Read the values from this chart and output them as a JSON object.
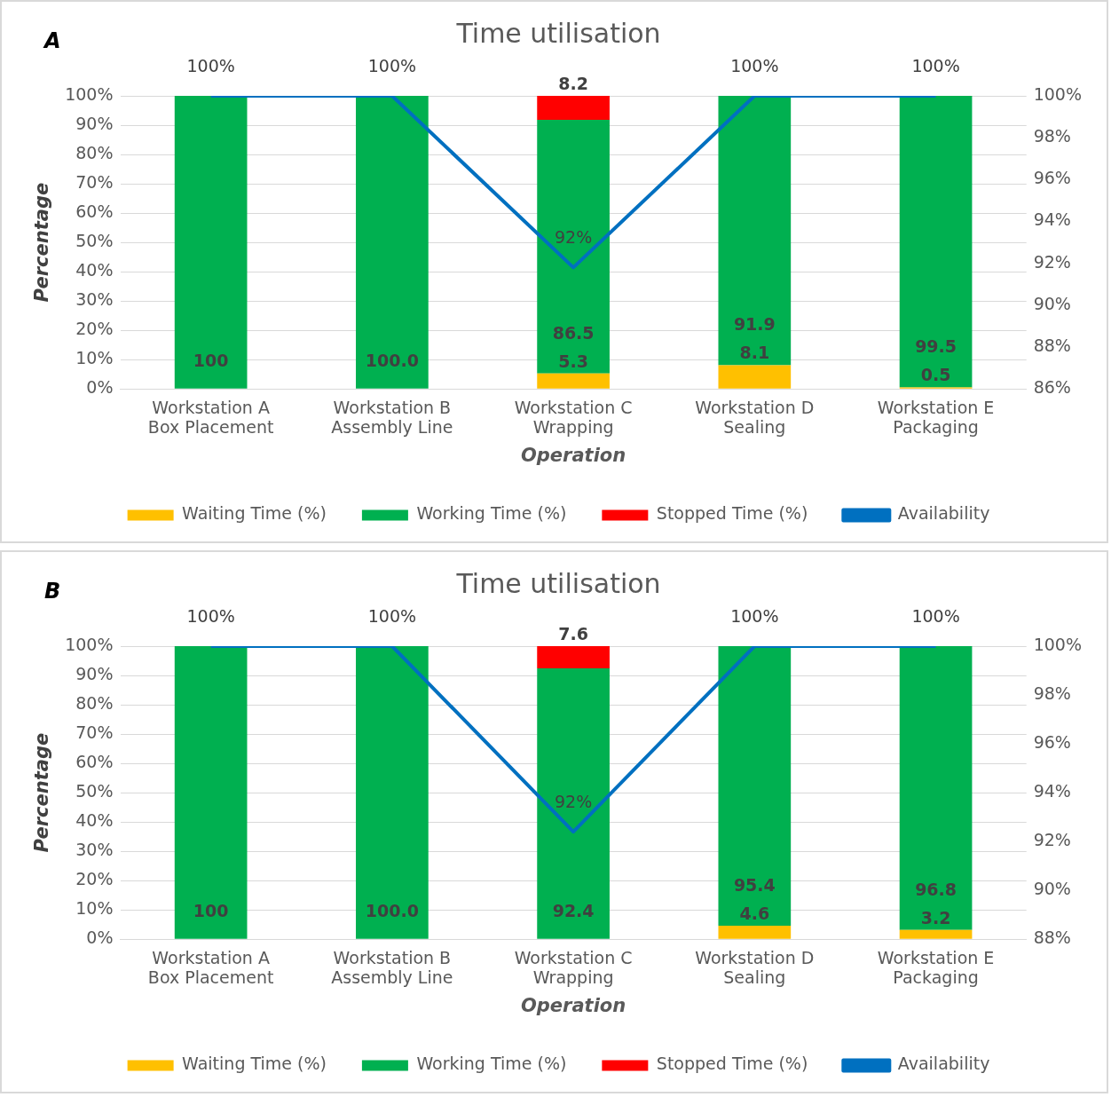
{
  "chart_data": [
    {
      "type": "bar",
      "title": "Time utilisation",
      "xlabel": "Operation",
      "ylabel": "Percentage",
      "annotations": [
        "A"
      ],
      "stacked": true,
      "legend": "bottom",
      "grid": "y",
      "marker": "none",
      "categories": [
        "Workstation A\nBox Placement",
        "Workstation B\nAssembly Line",
        "Workstation C\nWrapping",
        "Workstation D\nSealing",
        "Workstation E\nPackaging"
      ],
      "ylim": [
        0,
        100
      ],
      "yticks": [
        {
          "value": 0,
          "label": "0%"
        },
        {
          "value": 10,
          "label": "10%"
        },
        {
          "value": 20,
          "label": "20%"
        },
        {
          "value": 30,
          "label": "30%"
        },
        {
          "value": 40,
          "label": "40%"
        },
        {
          "value": 50,
          "label": "50%"
        },
        {
          "value": 60,
          "label": "60%"
        },
        {
          "value": 70,
          "label": "70%"
        },
        {
          "value": 80,
          "label": "80%"
        },
        {
          "value": 90,
          "label": "90%"
        },
        {
          "value": 100,
          "label": "100%"
        }
      ],
      "y2lim": [
        86,
        100
      ],
      "y2ticks": [
        {
          "value": 86,
          "label": "86%"
        },
        {
          "value": 88,
          "label": "88%"
        },
        {
          "value": 90,
          "label": "90%"
        },
        {
          "value": 92,
          "label": "92%"
        },
        {
          "value": 94,
          "label": "94%"
        },
        {
          "value": 96,
          "label": "96%"
        },
        {
          "value": 98,
          "label": "98%"
        },
        {
          "value": 100,
          "label": "100%"
        }
      ],
      "series": [
        {
          "name": "Waiting Time (%)",
          "color": "#ffc000",
          "values": [
            0,
            0,
            5.3,
            8.1,
            0.5
          ],
          "value_labels": [
            null,
            null,
            "5.3",
            "8.1",
            "0.5"
          ]
        },
        {
          "name": "Working Time (%)",
          "color": "#00b050",
          "values": [
            100,
            100,
            86.5,
            91.9,
            99.5
          ],
          "value_labels": [
            "100",
            "100.0",
            "86.5",
            "91.9",
            "99.5"
          ]
        },
        {
          "name": "Stopped Time (%)",
          "color": "#ff0000",
          "values": [
            0,
            0,
            8.2,
            0,
            0
          ],
          "value_labels": [
            null,
            null,
            "8.2",
            null,
            null
          ]
        },
        {
          "name": "Availability",
          "type": "line",
          "axis": "y2",
          "color": "#0070c0",
          "values": [
            100,
            100,
            91.8,
            100,
            100
          ],
          "value_labels": [
            "100%",
            "100%",
            "92%",
            "100%",
            "100%"
          ]
        }
      ]
    },
    {
      "type": "bar",
      "title": "Time utilisation",
      "xlabel": "Operation",
      "ylabel": "Percentage",
      "annotations": [
        "B"
      ],
      "stacked": true,
      "legend": "bottom",
      "grid": "y",
      "marker": "none",
      "categories": [
        "Workstation A\nBox Placement",
        "Workstation B\nAssembly Line",
        "Workstation C\nWrapping",
        "Workstation D\nSealing",
        "Workstation E\nPackaging"
      ],
      "ylim": [
        0,
        100
      ],
      "yticks": [
        {
          "value": 0,
          "label": "0%"
        },
        {
          "value": 10,
          "label": "10%"
        },
        {
          "value": 20,
          "label": "20%"
        },
        {
          "value": 30,
          "label": "30%"
        },
        {
          "value": 40,
          "label": "40%"
        },
        {
          "value": 50,
          "label": "50%"
        },
        {
          "value": 60,
          "label": "60%"
        },
        {
          "value": 70,
          "label": "70%"
        },
        {
          "value": 80,
          "label": "80%"
        },
        {
          "value": 90,
          "label": "90%"
        },
        {
          "value": 100,
          "label": "100%"
        }
      ],
      "y2lim": [
        88,
        100
      ],
      "y2ticks": [
        {
          "value": 88,
          "label": "88%"
        },
        {
          "value": 90,
          "label": "90%"
        },
        {
          "value": 92,
          "label": "92%"
        },
        {
          "value": 94,
          "label": "94%"
        },
        {
          "value": 96,
          "label": "96%"
        },
        {
          "value": 98,
          "label": "98%"
        },
        {
          "value": 100,
          "label": "100%"
        }
      ],
      "series": [
        {
          "name": "Waiting Time (%)",
          "color": "#ffc000",
          "values": [
            0,
            0,
            0,
            4.6,
            3.2
          ],
          "value_labels": [
            null,
            null,
            null,
            "4.6",
            "3.2"
          ]
        },
        {
          "name": "Working Time (%)",
          "color": "#00b050",
          "values": [
            100,
            100,
            92.4,
            95.4,
            96.8
          ],
          "value_labels": [
            "100",
            "100.0",
            "92.4",
            "95.4",
            "96.8"
          ]
        },
        {
          "name": "Stopped Time (%)",
          "color": "#ff0000",
          "values": [
            0,
            0,
            7.6,
            0,
            0
          ],
          "value_labels": [
            null,
            null,
            "7.6",
            null,
            null
          ]
        },
        {
          "name": "Availability",
          "type": "line",
          "axis": "y2",
          "color": "#0070c0",
          "values": [
            100,
            100,
            92.4,
            100,
            100
          ],
          "value_labels": [
            "100%",
            "100%",
            "92%",
            "100%",
            "100%"
          ]
        }
      ]
    }
  ]
}
